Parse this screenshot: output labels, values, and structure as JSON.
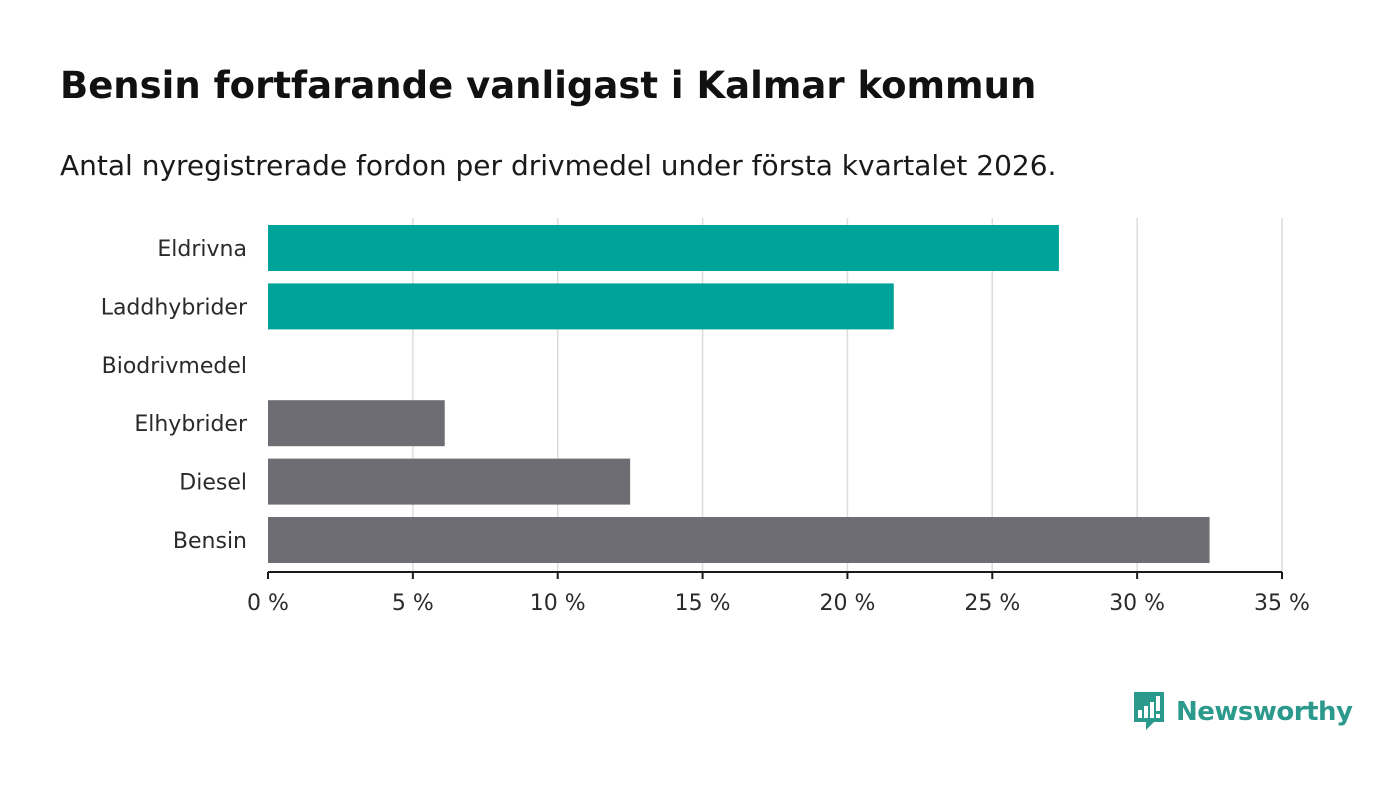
{
  "title": "Bensin fortfarande vanligast i Kalmar kommun",
  "subtitle": "Antal nyregistrerade fordon per drivmedel under första kvartalet 2026.",
  "brand": {
    "name": "Newsworthy",
    "icon": "newsworthy-logo-icon",
    "color": "#2b9a8c"
  },
  "chart_data": {
    "type": "bar",
    "orientation": "horizontal",
    "categories": [
      "Eldrivna",
      "Laddhybrider",
      "Biodrivmedel",
      "Elhybrider",
      "Diesel",
      "Bensin"
    ],
    "values": [
      27.3,
      21.6,
      0,
      6.1,
      12.5,
      32.5
    ],
    "colors": [
      "#00a39a",
      "#00a39a",
      "#6e6d73",
      "#6e6d73",
      "#6e6d73",
      "#6e6d73"
    ],
    "xlim": [
      0,
      35
    ],
    "xticks": [
      0,
      5,
      10,
      15,
      20,
      25,
      30,
      35
    ],
    "xtick_labels": [
      "0 %",
      "5 %",
      "10 %",
      "15 %",
      "20 %",
      "25 %",
      "30 %",
      "35 %"
    ],
    "xlabel": "",
    "ylabel": "",
    "grid": "vertical"
  }
}
